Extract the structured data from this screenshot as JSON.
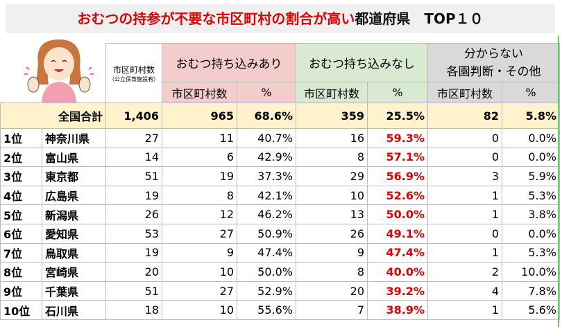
{
  "title": {
    "red": "おむつの持参が不要な市区町村の割合が高い",
    "black": "都道府県　TOP１０"
  },
  "header": {
    "count": "市区町村数",
    "count_note": "（公立保育施設有）",
    "g1": "おむつ持ち込みあり",
    "g2": "おむつ持ち込みなし",
    "g3_line1": "分からない",
    "g3_line2": "各園判断・その他",
    "sub_count": "市区町村数",
    "sub_pct": "%"
  },
  "total": {
    "label": "全国合計",
    "count": "1,406",
    "c1": "965",
    "p1": "68.6%",
    "c2": "359",
    "p2": "25.5%",
    "c3": "82",
    "p3": "5.8%"
  },
  "rows": [
    {
      "rank": "1位",
      "pref": "神奈川県",
      "count": "27",
      "c1": "11",
      "p1": "40.7%",
      "c2": "16",
      "p2": "59.3%",
      "c3": "0",
      "p3": "0.0%"
    },
    {
      "rank": "2位",
      "pref": "富山県",
      "count": "14",
      "c1": "6",
      "p1": "42.9%",
      "c2": "8",
      "p2": "57.1%",
      "c3": "0",
      "p3": "0.0%"
    },
    {
      "rank": "3位",
      "pref": "東京都",
      "count": "51",
      "c1": "19",
      "p1": "37.3%",
      "c2": "29",
      "p2": "56.9%",
      "c3": "3",
      "p3": "5.9%"
    },
    {
      "rank": "4位",
      "pref": "広島県",
      "count": "19",
      "c1": "8",
      "p1": "42.1%",
      "c2": "10",
      "p2": "52.6%",
      "c3": "1",
      "p3": "5.3%"
    },
    {
      "rank": "5位",
      "pref": "新潟県",
      "count": "26",
      "c1": "12",
      "p1": "46.2%",
      "c2": "13",
      "p2": "50.0%",
      "c3": "1",
      "p3": "3.8%"
    },
    {
      "rank": "6位",
      "pref": "愛知県",
      "count": "53",
      "c1": "27",
      "p1": "50.9%",
      "c2": "26",
      "p2": "49.1%",
      "c3": "0",
      "p3": "0.0%"
    },
    {
      "rank": "7位",
      "pref": "鳥取県",
      "count": "19",
      "c1": "9",
      "p1": "47.4%",
      "c2": "9",
      "p2": "47.4%",
      "c3": "1",
      "p3": "5.3%"
    },
    {
      "rank": "8位",
      "pref": "宮崎県",
      "count": "20",
      "c1": "10",
      "p1": "50.0%",
      "c2": "8",
      "p2": "40.0%",
      "c3": "2",
      "p3": "10.0%"
    },
    {
      "rank": "9位",
      "pref": "千葉県",
      "count": "51",
      "c1": "27",
      "p1": "52.9%",
      "c2": "20",
      "p2": "39.2%",
      "c3": "4",
      "p3": "7.8%"
    },
    {
      "rank": "10位",
      "pref": "石川県",
      "count": "18",
      "c1": "10",
      "p1": "55.6%",
      "c2": "7",
      "p2": "38.9%",
      "c3": "1",
      "p3": "5.6%"
    }
  ]
}
